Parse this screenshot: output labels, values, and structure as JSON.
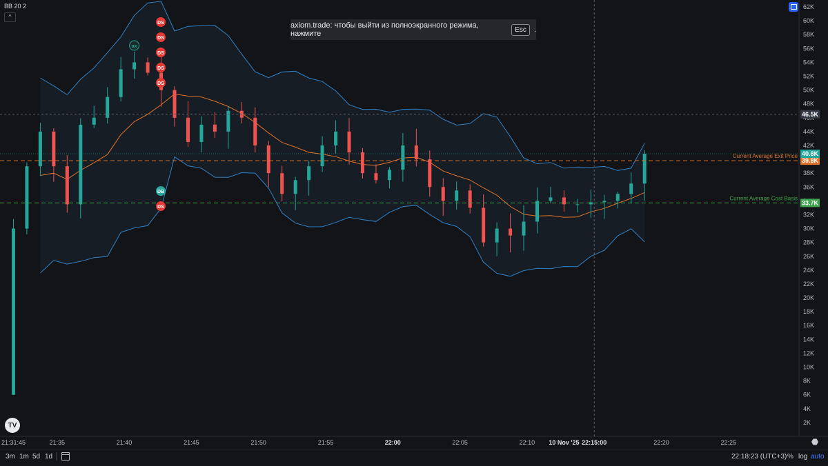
{
  "indicator_label": "BB 20 2",
  "collapse_glyph": "^",
  "toast": {
    "text": "axiom.trade: чтобы выйти из полноэкранного режима, нажмите",
    "key": "Esc",
    "suffix": "."
  },
  "timeframes": [
    "3m",
    "1m",
    "5d",
    "1d"
  ],
  "clock": "22:18:23 (UTC+3)",
  "options": {
    "percent": "%",
    "log": "log",
    "auto": "auto"
  },
  "logo_text": "TV",
  "icons": {
    "fullscreen": "fullscreen-icon",
    "calendar": "calendar-icon",
    "settings": "settings-icon",
    "target": "target-icon",
    "logo": "tradingview-logo"
  },
  "chart_data": {
    "type": "candlestick",
    "y_unit": "K",
    "ylim": [
      0,
      63
    ],
    "y_ticks": [
      "2K",
      "4K",
      "6K",
      "8K",
      "10K",
      "12K",
      "14K",
      "16K",
      "18K",
      "20K",
      "22K",
      "24K",
      "26K",
      "28K",
      "30K",
      "32K",
      "34K",
      "36K",
      "38K",
      "40K",
      "42K",
      "44K",
      "46K",
      "48K",
      "50K",
      "52K",
      "54K",
      "56K",
      "58K",
      "60K",
      "62K"
    ],
    "y_tick_values": [
      2,
      4,
      6,
      8,
      10,
      12,
      14,
      16,
      18,
      20,
      22,
      24,
      26,
      28,
      30,
      32,
      34,
      36,
      38,
      40,
      42,
      44,
      46,
      48,
      50,
      52,
      54,
      56,
      58,
      60,
      62
    ],
    "x_ticks": [
      {
        "label": "21:31:45",
        "t": 0
      },
      {
        "label": "21:35",
        "t": 3.25
      },
      {
        "label": "21:40",
        "t": 8.25
      },
      {
        "label": "21:45",
        "t": 13.25
      },
      {
        "label": "21:50",
        "t": 18.25
      },
      {
        "label": "21:55",
        "t": 23.25
      },
      {
        "label": "22:00",
        "t": 28.25,
        "bold": true
      },
      {
        "label": "22:05",
        "t": 33.25
      },
      {
        "label": "22:10",
        "t": 38.25
      },
      {
        "label": "10 Nov '25",
        "t": 41.0,
        "bold": true
      },
      {
        "label": "22:15:00",
        "t": 43.25,
        "bold": true
      },
      {
        "label": "22:20",
        "t": 48.25
      },
      {
        "label": "22:25",
        "t": 53.25
      }
    ],
    "xlim": [
      -1,
      58.5
    ],
    "crosshair": {
      "t": 43.25,
      "price": 46.5,
      "label": "46.5K"
    },
    "price_lines": [
      {
        "name": "Current Average Exit Price",
        "value": 39.8,
        "label": "39.8K",
        "color": "#e0732b"
      },
      {
        "name": "Current Average Cost Basis",
        "value": 33.7,
        "label": "33.7K",
        "color": "#3fa34d"
      }
    ],
    "last_price": {
      "value": 40.8,
      "label": "40.8K",
      "color": "#26a69a"
    },
    "closes": [
      30.0,
      39.0,
      44.0,
      39.0,
      33.5,
      45.0,
      46.0,
      49.0,
      53.0,
      54.0,
      52.5,
      50.0,
      46.0,
      42.5,
      45.0,
      44.0,
      47.0,
      46.0,
      42.0,
      38.0,
      35.0,
      37.0,
      39.0,
      42.0,
      44.0,
      41.0,
      38.0,
      37.0,
      38.5,
      42.0,
      40.0,
      36.0,
      34.0,
      35.5,
      33.0,
      28.0,
      30.0,
      29.0,
      31.0,
      34.0,
      34.5,
      33.5,
      33.5,
      33.8,
      34.0,
      35.0,
      36.5,
      40.8
    ],
    "markers": [
      {
        "t": 0,
        "label": "DS",
        "side": "top"
      },
      {
        "t": 0,
        "label": "DS",
        "side": "top"
      },
      {
        "t": 0,
        "label": "DS",
        "side": "top"
      },
      {
        "t": 0,
        "label": "DS",
        "side": "top"
      },
      {
        "t": 0,
        "label": "DS",
        "side": "top"
      },
      {
        "t": 0,
        "label": "DB",
        "side": "mid"
      },
      {
        "t": 0,
        "label": "DS",
        "side": "mid"
      },
      {
        "t": 9.0,
        "label": "ax",
        "side": "top"
      }
    ]
  }
}
